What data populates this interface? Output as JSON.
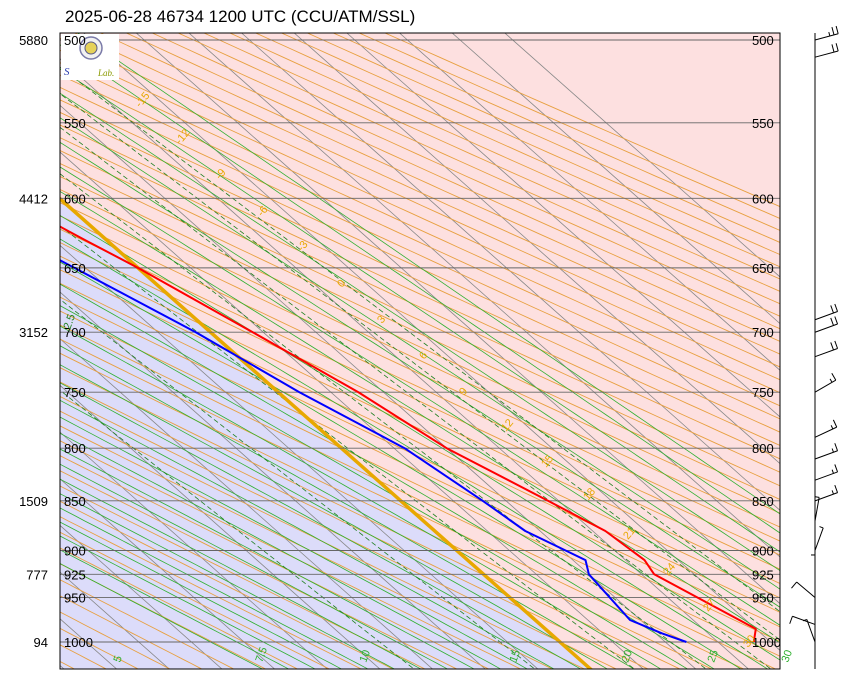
{
  "chart_data": {
    "type": "skew-t",
    "title": "2025-06-28 46734 1200 UTC (CCU/ATM/SSL)",
    "logo_text": "Lab.",
    "colors": {
      "cold_region": "#dcdcfa",
      "warm_region": "#fde0e0",
      "freezing_line": "#e8a800",
      "dry_adiabat": "#e8a040",
      "moist_adiabat": "#30b030",
      "mixing_ratio": "#208020",
      "temperature": "#ff0000",
      "dewpoint": "#0000ff"
    },
    "pressure_levels": [
      1000,
      950,
      925,
      900,
      850,
      800,
      750,
      700,
      650,
      600,
      550,
      500
    ],
    "pressure_labels": [
      "1000",
      "950",
      "925",
      "900",
      "850",
      "800",
      "750",
      "700",
      "650",
      "600",
      "550",
      "500"
    ],
    "height_labels": [
      {
        "p": 1000,
        "text": "94"
      },
      {
        "p": 925,
        "text": "777"
      },
      {
        "p": 850,
        "text": "1509"
      },
      {
        "p": 700,
        "text": "3152"
      },
      {
        "p": 600,
        "text": "4412"
      },
      {
        "p": 500,
        "text": "5880"
      }
    ],
    "dry_adiabat_labels": [
      {
        "t": -15,
        "text": "-15"
      },
      {
        "t": -12,
        "text": "-12"
      },
      {
        "t": -9,
        "text": "-9"
      },
      {
        "t": -6,
        "text": "-6"
      },
      {
        "t": -3,
        "text": "-3"
      },
      {
        "t": 0,
        "text": "0"
      },
      {
        "t": 3,
        "text": "3"
      },
      {
        "t": 6,
        "text": "6"
      },
      {
        "t": 9,
        "text": "9"
      },
      {
        "t": 12,
        "text": "12"
      },
      {
        "t": 15,
        "text": "15"
      },
      {
        "t": 18,
        "text": "18"
      },
      {
        "t": 21,
        "text": "21"
      },
      {
        "t": 24,
        "text": "24"
      },
      {
        "t": 27,
        "text": "27"
      },
      {
        "t": 30,
        "text": "30"
      }
    ],
    "moist_adiabat_labels": [
      {
        "t": 5,
        "text": "5"
      },
      {
        "t": 7.5,
        "text": "7.5"
      },
      {
        "t": 10,
        "text": "10"
      },
      {
        "t": 15,
        "text": "15"
      },
      {
        "t": 20,
        "text": "20"
      },
      {
        "t": 25,
        "text": "25"
      },
      {
        "t": 30,
        "text": "30"
      }
    ],
    "mixing_ratio_labels": [
      "2.5"
    ],
    "temperature": [
      {
        "p": 1000,
        "t": 18.4
      },
      {
        "p": 985,
        "t": 20.0
      },
      {
        "p": 925,
        "t": 16.2
      },
      {
        "p": 910,
        "t": 16.8
      },
      {
        "p": 880,
        "t": 16.2
      },
      {
        "p": 850,
        "t": 14.0
      },
      {
        "p": 800,
        "t": 10.0
      },
      {
        "p": 750,
        "t": 7.6
      },
      {
        "p": 700,
        "t": 4.0
      },
      {
        "p": 650,
        "t": 0.0
      },
      {
        "p": 630,
        "t": -2.0
      },
      {
        "p": 600,
        "t": -5.0
      },
      {
        "p": 550,
        "t": -11.0
      },
      {
        "p": 510,
        "t": -16.0
      },
      {
        "p": 500,
        "t": -16.0
      }
    ],
    "dewpoint": [
      {
        "p": 1000,
        "t": 12.0
      },
      {
        "p": 990,
        "t": 10.6
      },
      {
        "p": 975,
        "t": 9.0
      },
      {
        "p": 925,
        "t": 10.0
      },
      {
        "p": 910,
        "t": 11.2
      },
      {
        "p": 880,
        "t": 8.6
      },
      {
        "p": 850,
        "t": 7.8
      },
      {
        "p": 800,
        "t": 6.0
      },
      {
        "p": 750,
        "t": 2.0
      },
      {
        "p": 700,
        "t": -1.4
      },
      {
        "p": 630,
        "t": -8.0
      },
      {
        "p": 610,
        "t": -6.0
      },
      {
        "p": 600,
        "t": -7.0
      },
      {
        "p": 550,
        "t": -12.0
      },
      {
        "p": 500,
        "t": -19.0
      }
    ],
    "wind_barbs": [
      {
        "p": 1000,
        "speed_kt": 5,
        "dir": 160
      },
      {
        "p": 980,
        "speed_kt": 10,
        "dir": 110
      },
      {
        "p": 950,
        "speed_kt": 10,
        "dir": 130
      },
      {
        "p": 930,
        "speed_kt": 5,
        "dir": 180
      },
      {
        "p": 900,
        "speed_kt": 5,
        "dir": 200
      },
      {
        "p": 870,
        "speed_kt": 5,
        "dir": 190
      },
      {
        "p": 850,
        "speed_kt": 15,
        "dir": 250
      },
      {
        "p": 830,
        "speed_kt": 15,
        "dir": 250
      },
      {
        "p": 810,
        "speed_kt": 15,
        "dir": 250
      },
      {
        "p": 790,
        "speed_kt": 15,
        "dir": 245
      },
      {
        "p": 750,
        "speed_kt": 15,
        "dir": 240
      },
      {
        "p": 720,
        "speed_kt": 20,
        "dir": 250
      },
      {
        "p": 700,
        "speed_kt": 20,
        "dir": 250
      },
      {
        "p": 690,
        "speed_kt": 20,
        "dir": 250
      },
      {
        "p": 510,
        "speed_kt": 20,
        "dir": 255
      },
      {
        "p": 500,
        "speed_kt": 25,
        "dir": 255
      }
    ]
  }
}
